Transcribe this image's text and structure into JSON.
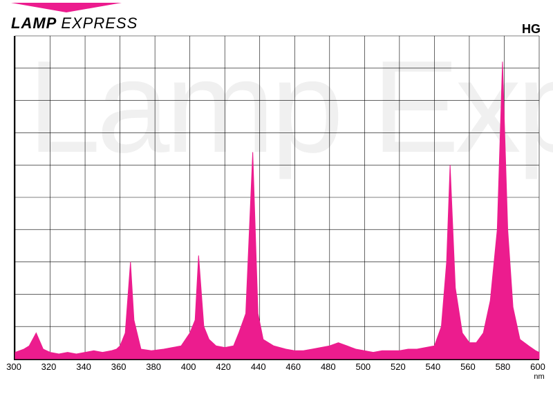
{
  "brand": {
    "word1": "LAMP",
    "word2": "EXPRESS"
  },
  "label_hg": "HG",
  "watermark_text": "Lamp Express",
  "chart": {
    "type": "area",
    "x_min": 300,
    "x_max": 600,
    "y_min": 0,
    "y_max": 100,
    "x_ticks": [
      300,
      320,
      340,
      360,
      380,
      400,
      420,
      440,
      460,
      480,
      500,
      520,
      540,
      560,
      580,
      600
    ],
    "x_unit": "nm",
    "grid_vlines": [
      300,
      320,
      340,
      360,
      380,
      400,
      420,
      440,
      460,
      480,
      500,
      520,
      540,
      560,
      580,
      600
    ],
    "grid_hlines_count": 10,
    "grid_color": "#000000",
    "grid_width": 0.6,
    "fill_color": "#ec1c8e",
    "stroke_color": "#ec1c8e",
    "background_color": "#ffffff",
    "logo_pointer_color": "#ec1c8e",
    "tick_font_size": 13,
    "data": [
      [
        300,
        2
      ],
      [
        305,
        3
      ],
      [
        308,
        4
      ],
      [
        312,
        8
      ],
      [
        316,
        3
      ],
      [
        320,
        2
      ],
      [
        325,
        1.5
      ],
      [
        330,
        2
      ],
      [
        335,
        1.5
      ],
      [
        340,
        2
      ],
      [
        345,
        2.5
      ],
      [
        350,
        2
      ],
      [
        355,
        2.5
      ],
      [
        358,
        3
      ],
      [
        360,
        4
      ],
      [
        363,
        8
      ],
      [
        366,
        30
      ],
      [
        368,
        12
      ],
      [
        372,
        3
      ],
      [
        378,
        2.5
      ],
      [
        385,
        3
      ],
      [
        390,
        3.5
      ],
      [
        395,
        4
      ],
      [
        400,
        8
      ],
      [
        403,
        12
      ],
      [
        405,
        32
      ],
      [
        408,
        10
      ],
      [
        411,
        6
      ],
      [
        415,
        4
      ],
      [
        420,
        3.5
      ],
      [
        425,
        4
      ],
      [
        428,
        8
      ],
      [
        432,
        14
      ],
      [
        436,
        64
      ],
      [
        439,
        14
      ],
      [
        442,
        6
      ],
      [
        448,
        4
      ],
      [
        455,
        3
      ],
      [
        460,
        2.5
      ],
      [
        465,
        2.5
      ],
      [
        470,
        3
      ],
      [
        475,
        3.5
      ],
      [
        480,
        4
      ],
      [
        485,
        5
      ],
      [
        490,
        4
      ],
      [
        495,
        3
      ],
      [
        500,
        2.5
      ],
      [
        505,
        2
      ],
      [
        510,
        2.5
      ],
      [
        515,
        2.5
      ],
      [
        520,
        2.5
      ],
      [
        525,
        3
      ],
      [
        530,
        3
      ],
      [
        535,
        3.5
      ],
      [
        540,
        4
      ],
      [
        544,
        10
      ],
      [
        547,
        30
      ],
      [
        549,
        60
      ],
      [
        552,
        22
      ],
      [
        556,
        8
      ],
      [
        560,
        5
      ],
      [
        564,
        5
      ],
      [
        568,
        8
      ],
      [
        572,
        18
      ],
      [
        576,
        40
      ],
      [
        579,
        92
      ],
      [
        582,
        40
      ],
      [
        585,
        16
      ],
      [
        589,
        6
      ],
      [
        594,
        4
      ],
      [
        598,
        2.5
      ],
      [
        600,
        2
      ]
    ]
  }
}
